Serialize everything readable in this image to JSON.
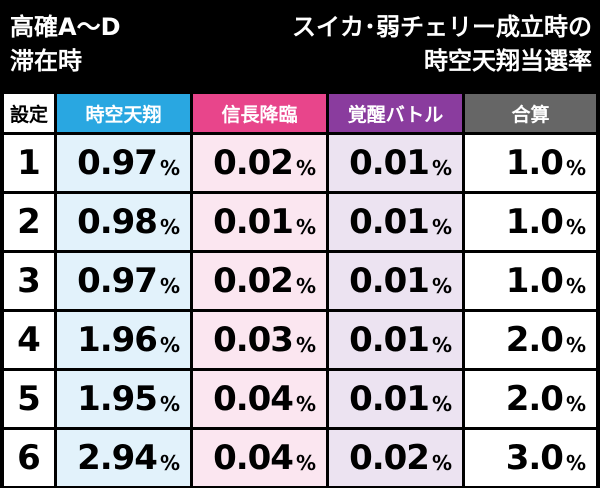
{
  "header": {
    "left_line1": "高確A～D",
    "left_line2": "滞在時",
    "right_line1": "スイカ･弱チェリー成立時の",
    "right_line2": "時空天翔当選率"
  },
  "columns": [
    "設定",
    "時空天翔",
    "信長降臨",
    "覚醒バトル",
    "合算"
  ],
  "percent_symbol": "%",
  "rows": [
    {
      "setting": "1",
      "jiku": "0.97",
      "nobunaga": "0.02",
      "kakusei": "0.01",
      "total": "1.0"
    },
    {
      "setting": "2",
      "jiku": "0.98",
      "nobunaga": "0.01",
      "kakusei": "0.01",
      "total": "1.0"
    },
    {
      "setting": "3",
      "jiku": "0.97",
      "nobunaga": "0.02",
      "kakusei": "0.01",
      "total": "1.0"
    },
    {
      "setting": "4",
      "jiku": "1.96",
      "nobunaga": "0.03",
      "kakusei": "0.01",
      "total": "2.0"
    },
    {
      "setting": "5",
      "jiku": "1.95",
      "nobunaga": "0.04",
      "kakusei": "0.01",
      "total": "2.0"
    },
    {
      "setting": "6",
      "jiku": "2.94",
      "nobunaga": "0.04",
      "kakusei": "0.02",
      "total": "3.0"
    }
  ],
  "colors": {
    "jiku_header": "#29a7e1",
    "nobunaga_header": "#e8458b",
    "kakusei_header": "#8a3c9e",
    "total_header": "#666666"
  }
}
